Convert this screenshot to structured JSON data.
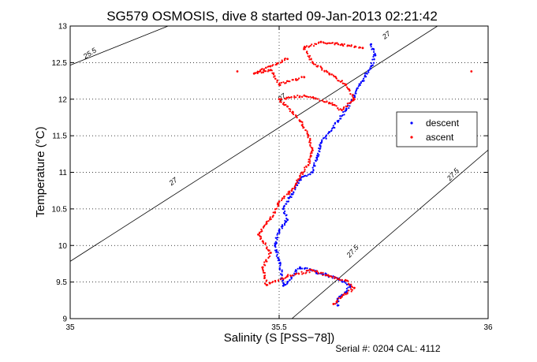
{
  "chart_data": {
    "type": "scatter",
    "title": "SG579 OSMOSIS, dive 8 started 09-Jan-2013 02:21:42",
    "xlabel": "Salinity (S [PSS−78])",
    "ylabel": "Temperature (°C)",
    "xlim": [
      35,
      36
    ],
    "ylim": [
      9,
      13
    ],
    "xticks": [
      "35",
      "35.5",
      "36"
    ],
    "yticks": [
      "9",
      "9.5",
      "10",
      "10.5",
      "11",
      "11.5",
      "12",
      "12.5",
      "13"
    ],
    "grid": true,
    "legend_position": "right",
    "footer": "Serial #: 0204  CAL: 4112",
    "isopycnal_labels": [
      "25.5",
      "27",
      "27",
      "27",
      "27.5",
      "27.5"
    ],
    "series": [
      {
        "name": "descent",
        "color": "#0000ff",
        "points": [
          [
            35.64,
            9.18
          ],
          [
            35.64,
            9.27
          ],
          [
            35.66,
            9.36
          ],
          [
            35.67,
            9.45
          ],
          [
            35.64,
            9.55
          ],
          [
            35.6,
            9.62
          ],
          [
            35.55,
            9.7
          ],
          [
            35.52,
            9.5
          ],
          [
            35.51,
            9.45
          ],
          [
            35.5,
            9.8
          ],
          [
            35.49,
            10.0
          ],
          [
            35.5,
            10.2
          ],
          [
            35.52,
            10.35
          ],
          [
            35.51,
            10.5
          ],
          [
            35.53,
            10.7
          ],
          [
            35.55,
            10.9
          ],
          [
            35.58,
            11.0
          ],
          [
            35.59,
            11.2
          ],
          [
            35.6,
            11.4
          ],
          [
            35.62,
            11.55
          ],
          [
            35.64,
            11.7
          ],
          [
            35.66,
            11.85
          ],
          [
            35.68,
            12.05
          ],
          [
            35.7,
            12.25
          ],
          [
            35.72,
            12.45
          ],
          [
            35.73,
            12.6
          ],
          [
            35.72,
            12.75
          ]
        ]
      },
      {
        "name": "ascent",
        "color": "#ff0000",
        "points": [
          [
            35.63,
            9.2
          ],
          [
            35.65,
            9.3
          ],
          [
            35.68,
            9.42
          ],
          [
            35.66,
            9.52
          ],
          [
            35.62,
            9.58
          ],
          [
            35.58,
            9.66
          ],
          [
            35.52,
            9.58
          ],
          [
            35.47,
            9.46
          ],
          [
            35.46,
            9.7
          ],
          [
            35.48,
            9.9
          ],
          [
            35.45,
            10.15
          ],
          [
            35.47,
            10.3
          ],
          [
            35.49,
            10.45
          ],
          [
            35.5,
            10.6
          ],
          [
            35.53,
            10.75
          ],
          [
            35.55,
            10.95
          ],
          [
            35.57,
            11.1
          ],
          [
            35.58,
            11.3
          ],
          [
            35.57,
            11.5
          ],
          [
            35.55,
            11.7
          ],
          [
            35.52,
            11.9
          ],
          [
            35.5,
            12.0
          ],
          [
            35.56,
            12.05
          ],
          [
            35.62,
            11.95
          ],
          [
            35.65,
            11.85
          ],
          [
            35.68,
            12.0
          ],
          [
            35.66,
            12.2
          ],
          [
            35.62,
            12.35
          ],
          [
            35.58,
            12.5
          ],
          [
            35.56,
            12.7
          ],
          [
            35.6,
            12.78
          ],
          [
            35.65,
            12.75
          ],
          [
            35.7,
            12.7
          ],
          [
            35.56,
            12.3
          ],
          [
            35.5,
            12.2
          ],
          [
            35.48,
            12.4
          ],
          [
            35.44,
            12.35
          ],
          [
            35.52,
            12.55
          ],
          [
            35.96,
            12.38
          ],
          [
            35.4,
            12.38
          ]
        ]
      }
    ]
  }
}
